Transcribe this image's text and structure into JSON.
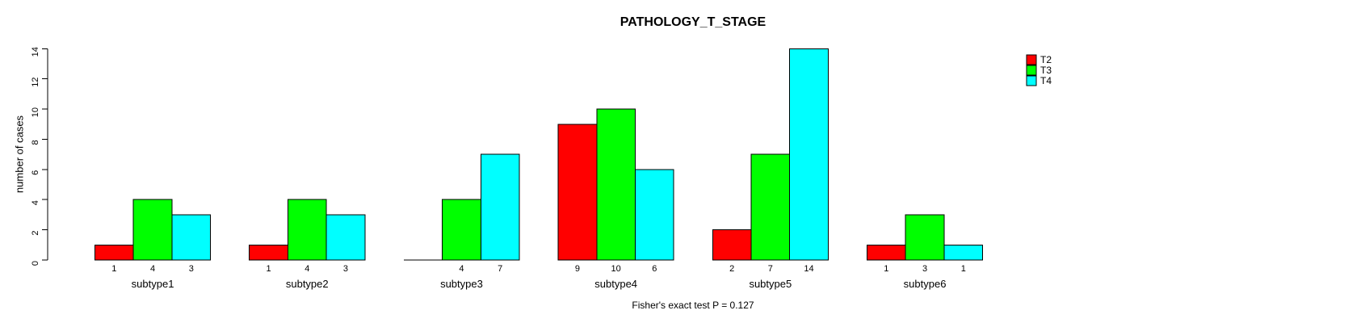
{
  "chart_data": {
    "type": "bar",
    "grouping": "grouped",
    "title": "PATHOLOGY_T_STAGE",
    "ylabel": "number of cases",
    "xlabel": "",
    "categories": [
      "subtype1",
      "subtype2",
      "subtype3",
      "subtype4",
      "subtype5",
      "subtype6"
    ],
    "series": [
      {
        "name": "T2",
        "color": "#ff0000",
        "values": [
          1,
          1,
          0,
          9,
          2,
          1
        ]
      },
      {
        "name": "T3",
        "color": "#00ff00",
        "values": [
          4,
          4,
          4,
          10,
          7,
          3
        ]
      },
      {
        "name": "T4",
        "color": "#00ffff",
        "values": [
          3,
          3,
          7,
          6,
          14,
          1
        ]
      }
    ],
    "ylim": [
      0,
      14
    ],
    "yticks": [
      0,
      2,
      4,
      6,
      8,
      10,
      12,
      14
    ],
    "bar_value_labels_shown": true,
    "zero_value_labels_hidden": true,
    "grid": false,
    "legend": {
      "position": "top-right",
      "entries": [
        {
          "label": "T2",
          "color": "#ff0000"
        },
        {
          "label": "T3",
          "color": "#00ff00"
        },
        {
          "label": "T4",
          "color": "#00ffff"
        }
      ]
    },
    "annotation": "Fisher's exact test P = 0.127",
    "axis_color": "#000000",
    "background_color": "#ffffff"
  }
}
